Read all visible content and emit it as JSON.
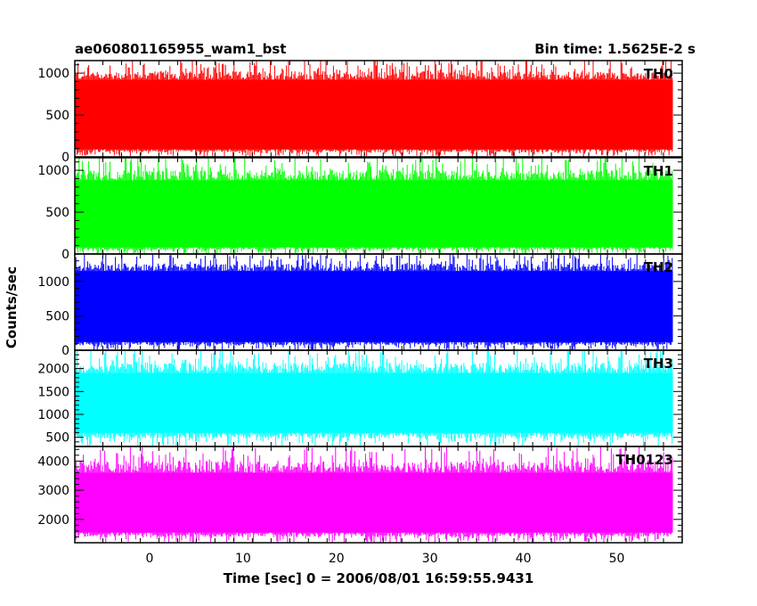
{
  "chart_data": {
    "type": "line",
    "title_left": "ae060801165955_wam1_bst",
    "title_right": "Bin time: 1.5625E-2 s",
    "xlabel": "Time [sec] 0 = 2006/08/01 16:59:55.9431",
    "ylabel": "Counts/sec",
    "xlim": [
      -8,
      57
    ],
    "x_data_range": [
      -8,
      56
    ],
    "xticks": [
      0,
      10,
      20,
      30,
      40,
      50
    ],
    "xtick_labels": [
      "0",
      "10",
      "20",
      "30",
      "40",
      "50"
    ],
    "grid": false,
    "panels": [
      {
        "name": "TH0",
        "color": "#ff0000",
        "ylim": [
          0,
          1150
        ],
        "yticks": [
          0,
          500,
          1000
        ],
        "ytick_labels": [
          "0",
          "500",
          "1000"
        ],
        "band_low": 90,
        "band_high": 920,
        "mean": 470
      },
      {
        "name": "TH1",
        "color": "#00ff00",
        "ylim": [
          0,
          1150
        ],
        "yticks": [
          0,
          500,
          1000
        ],
        "ytick_labels": [
          "0",
          "500",
          "1000"
        ],
        "band_low": 80,
        "band_high": 880,
        "mean": 450
      },
      {
        "name": "TH2",
        "color": "#0000ff",
        "ylim": [
          0,
          1400
        ],
        "yticks": [
          0,
          500,
          1000
        ],
        "ytick_labels": [
          "0",
          "500",
          "1000"
        ],
        "band_low": 120,
        "band_high": 1150,
        "mean": 600
      },
      {
        "name": "TH3",
        "color": "#00ffff",
        "ylim": [
          300,
          2400
        ],
        "yticks": [
          500,
          1000,
          1500,
          2000
        ],
        "ytick_labels": [
          "500",
          "1000",
          "1500",
          "2000"
        ],
        "band_low": 600,
        "band_high": 1900,
        "mean": 1200
      },
      {
        "name": "TH0123",
        "color": "#ff00ff",
        "ylim": [
          1200,
          4500
        ],
        "yticks": [
          2000,
          3000,
          4000
        ],
        "ytick_labels": [
          "2000",
          "3000",
          "4000"
        ],
        "band_low": 1550,
        "band_high": 3600,
        "mean": 2550
      }
    ]
  }
}
